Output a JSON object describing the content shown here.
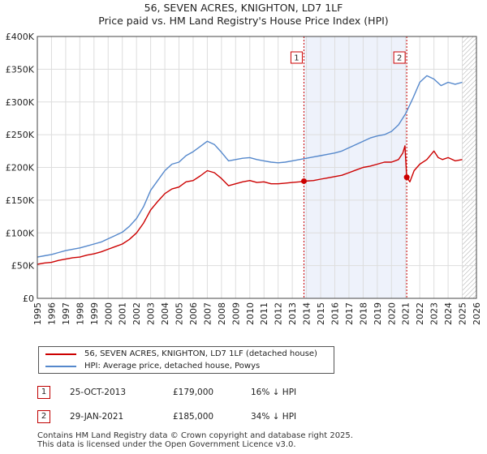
{
  "chart_data": {
    "type": "line",
    "title": "56, SEVEN ACRES, KNIGHTON, LD7 1LF",
    "subtitle": "Price paid vs. HM Land Registry's House Price Index (HPI)",
    "xlabel": "",
    "ylabel": "",
    "xlim": [
      1995.0,
      2026.0
    ],
    "ylim": [
      0,
      400000
    ],
    "y_ticks": [
      {
        "value": 0,
        "label": "£0"
      },
      {
        "value": 50000,
        "label": "£50K"
      },
      {
        "value": 100000,
        "label": "£100K"
      },
      {
        "value": 150000,
        "label": "£150K"
      },
      {
        "value": 200000,
        "label": "£200K"
      },
      {
        "value": 250000,
        "label": "£250K"
      },
      {
        "value": 300000,
        "label": "£300K"
      },
      {
        "value": 350000,
        "label": "£350K"
      },
      {
        "value": 400000,
        "label": "£400K"
      }
    ],
    "x_ticks": [
      "1995",
      "1996",
      "1997",
      "1998",
      "1999",
      "2000",
      "2001",
      "2002",
      "2003",
      "2004",
      "2005",
      "2006",
      "2007",
      "2008",
      "2009",
      "2010",
      "2011",
      "2012",
      "2013",
      "2014",
      "2015",
      "2016",
      "2017",
      "2018",
      "2019",
      "2020",
      "2021",
      "2022",
      "2023",
      "2024",
      "2025",
      "2026"
    ],
    "grid": true,
    "shaded_period": [
      2013.82,
      2021.08
    ],
    "hatched_from": 2025.0,
    "series": [
      {
        "name": "56, SEVEN ACRES, KNIGHTON, LD7 1LF (detached house)",
        "color": "#cc0000",
        "x": [
          1995.0,
          1995.5,
          1996.0,
          1996.5,
          1997.0,
          1997.5,
          1998.0,
          1998.5,
          1999.0,
          1999.5,
          2000.0,
          2000.5,
          2001.0,
          2001.5,
          2002.0,
          2002.5,
          2003.0,
          2003.5,
          2004.0,
          2004.5,
          2005.0,
          2005.5,
          2006.0,
          2006.5,
          2007.0,
          2007.5,
          2008.0,
          2008.5,
          2009.0,
          2009.5,
          2010.0,
          2010.5,
          2011.0,
          2011.5,
          2012.0,
          2012.5,
          2013.0,
          2013.5,
          2013.82,
          2014.5,
          2015.0,
          2015.5,
          2016.0,
          2016.5,
          2017.0,
          2017.5,
          2018.0,
          2018.5,
          2019.0,
          2019.5,
          2020.0,
          2020.5,
          2020.8,
          2020.95,
          2021.08,
          2021.3,
          2021.6,
          2022.0,
          2022.5,
          2023.0,
          2023.3,
          2023.6,
          2024.0,
          2024.5,
          2025.0
        ],
        "values": [
          52000,
          54000,
          55000,
          58000,
          60000,
          62000,
          63000,
          66000,
          68000,
          71000,
          75000,
          79000,
          83000,
          90000,
          100000,
          115000,
          135000,
          148000,
          160000,
          167000,
          170000,
          178000,
          180000,
          187000,
          195000,
          192000,
          183000,
          172000,
          175000,
          178000,
          180000,
          177000,
          178000,
          175000,
          175000,
          176000,
          177000,
          178000,
          179000,
          180000,
          182000,
          184000,
          186000,
          188000,
          192000,
          196000,
          200000,
          202000,
          205000,
          208000,
          208000,
          212000,
          222000,
          233000,
          185000,
          178000,
          195000,
          205000,
          212000,
          225000,
          215000,
          212000,
          215000,
          210000,
          212000
        ]
      },
      {
        "name": "HPI: Average price, detached house, Powys",
        "color": "#5588cc",
        "x": [
          1995.0,
          1995.5,
          1996.0,
          1996.5,
          1997.0,
          1997.5,
          1998.0,
          1998.5,
          1999.0,
          1999.5,
          2000.0,
          2000.5,
          2001.0,
          2001.5,
          2002.0,
          2002.5,
          2003.0,
          2003.5,
          2004.0,
          2004.5,
          2005.0,
          2005.5,
          2006.0,
          2006.5,
          2007.0,
          2007.5,
          2008.0,
          2008.5,
          2009.0,
          2009.5,
          2010.0,
          2010.5,
          2011.0,
          2011.5,
          2012.0,
          2012.5,
          2013.0,
          2013.5,
          2014.0,
          2014.5,
          2015.0,
          2015.5,
          2016.0,
          2016.5,
          2017.0,
          2017.5,
          2018.0,
          2018.5,
          2019.0,
          2019.5,
          2020.0,
          2020.5,
          2021.0,
          2021.5,
          2022.0,
          2022.5,
          2023.0,
          2023.5,
          2024.0,
          2024.5,
          2025.0
        ],
        "values": [
          63000,
          65000,
          67000,
          70000,
          73000,
          75000,
          77000,
          80000,
          83000,
          86000,
          91000,
          96000,
          101000,
          110000,
          122000,
          140000,
          165000,
          180000,
          195000,
          205000,
          208000,
          218000,
          224000,
          232000,
          240000,
          235000,
          223000,
          210000,
          212000,
          214000,
          215000,
          212000,
          210000,
          208000,
          207000,
          208000,
          210000,
          212000,
          214000,
          216000,
          218000,
          220000,
          222000,
          225000,
          230000,
          235000,
          240000,
          245000,
          248000,
          250000,
          255000,
          265000,
          282000,
          305000,
          330000,
          340000,
          335000,
          325000,
          330000,
          327000,
          330000
        ]
      }
    ],
    "sale_markers": [
      {
        "label": "1",
        "x": 2013.82,
        "value": 179000
      },
      {
        "label": "2",
        "x": 2021.08,
        "value": 185000
      }
    ]
  },
  "legend": {
    "property_label": "56, SEVEN ACRES, KNIGHTON, LD7 1LF (detached house)",
    "hpi_label": "HPI: Average price, detached house, Powys"
  },
  "transactions": [
    {
      "num": "1",
      "date": "25-OCT-2013",
      "price": "£179,000",
      "diff": "16% ↓ HPI"
    },
    {
      "num": "2",
      "date": "29-JAN-2021",
      "price": "£185,000",
      "diff": "34% ↓ HPI"
    }
  ],
  "footer": {
    "line1": "Contains HM Land Registry data © Crown copyright and database right 2025.",
    "line2": "This data is licensed under the Open Government Licence v3.0."
  },
  "colors": {
    "property": "#cc0000",
    "hpi": "#5588cc",
    "shade": "#eef2fb",
    "grid": "#dddddd"
  }
}
